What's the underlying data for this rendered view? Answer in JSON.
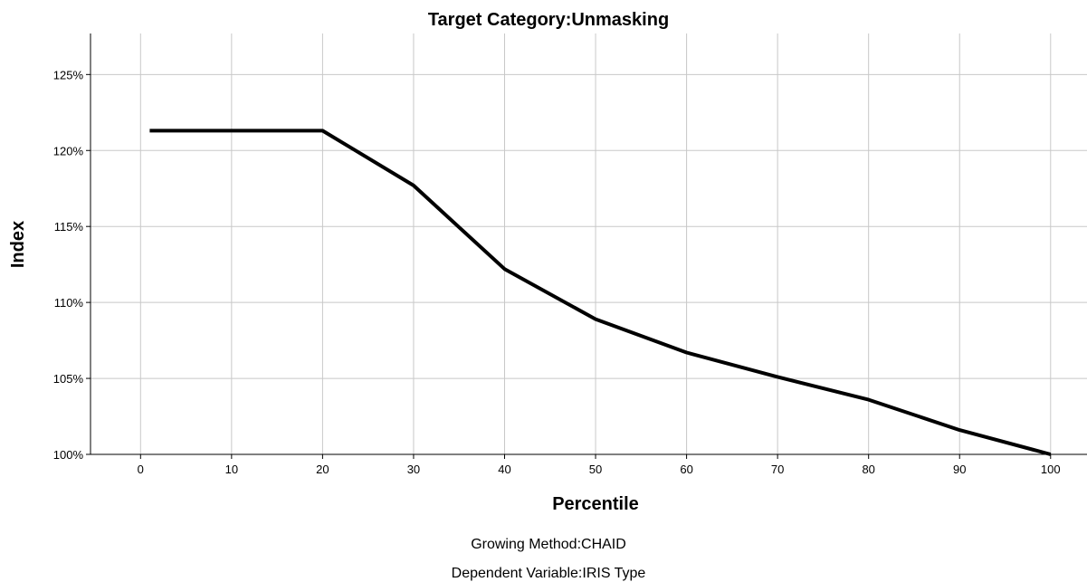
{
  "chart_data": {
    "type": "line",
    "title": "Target Category:Unmasking",
    "xlabel": "Percentile",
    "ylabel": "Index",
    "x_ticks": [
      "0",
      "10",
      "20",
      "30",
      "40",
      "50",
      "60",
      "70",
      "80",
      "90",
      "100"
    ],
    "y_ticks": [
      "100%",
      "105%",
      "110%",
      "115%",
      "120%",
      "125%"
    ],
    "xlim": [
      -5.5,
      104
    ],
    "ylim": [
      100,
      127.7
    ],
    "grid": true,
    "legend": "none",
    "line_color": "#000000",
    "grid_color": "#c8c8c8",
    "series": [
      {
        "x": [
          1,
          10,
          20,
          30,
          40,
          50,
          60,
          70,
          80,
          90,
          100
        ],
        "y": [
          121.3,
          121.3,
          121.3,
          117.7,
          112.2,
          108.9,
          106.7,
          105.1,
          103.6,
          101.6,
          100.0
        ]
      }
    ],
    "footnotes": [
      "Growing Method:CHAID",
      "Dependent Variable:IRIS Type"
    ]
  }
}
